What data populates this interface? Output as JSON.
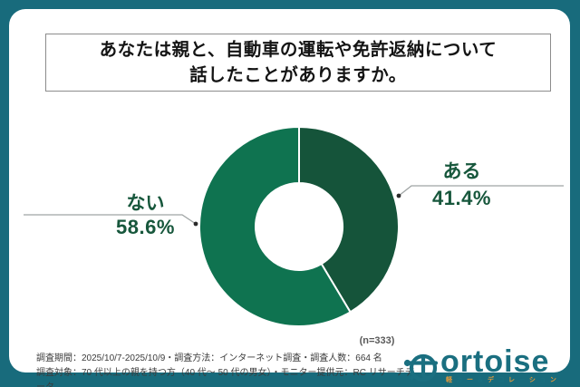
{
  "title": {
    "line1": "あなたは親と、自動車の運転や免許返納について",
    "line2": "話したことがありますか。"
  },
  "chart_data": {
    "type": "pie",
    "subtype": "donut",
    "title": "あなたは親と、自動車の運転や免許返納について話したことがありますか。",
    "categories": [
      "ある",
      "ない"
    ],
    "values": [
      41.4,
      58.6
    ],
    "value_labels": [
      "41.4%",
      "58.6%"
    ],
    "unit": "%",
    "sample_note": "(n=333)",
    "colors": [
      "#15543A",
      "#0F7350"
    ],
    "start_angle_deg": 0,
    "direction": "clockwise",
    "legend": "callout labels with leader lines",
    "inner_radius_ratio": 0.44
  },
  "callouts": {
    "aru": {
      "label": "ある",
      "value": "41.4%"
    },
    "nai": {
      "label": "ない",
      "value": "58.6%"
    }
  },
  "note": "(n=333)",
  "footer": {
    "line1": "調査期間：2025/10/7-2025/10/9・調査方法：インターネット調査・調査人数：664 名",
    "line2": "調査対象：70 代以上の親を持つ方（40 代〜 50 代の男女）・モニター提供元：RC リサーチデータ"
  },
  "logo": {
    "brand": "tortoise",
    "wordmark_text": "ortoise",
    "tagline": "軽カー＆デコレーション"
  },
  "colors": {
    "background": "#186B7C",
    "segment_aru": "#15543A",
    "segment_nai": "#0F7350",
    "label_text": "#17573C",
    "logo_teal": "#1A6F80",
    "tagline_accent": "#E39A3B"
  }
}
